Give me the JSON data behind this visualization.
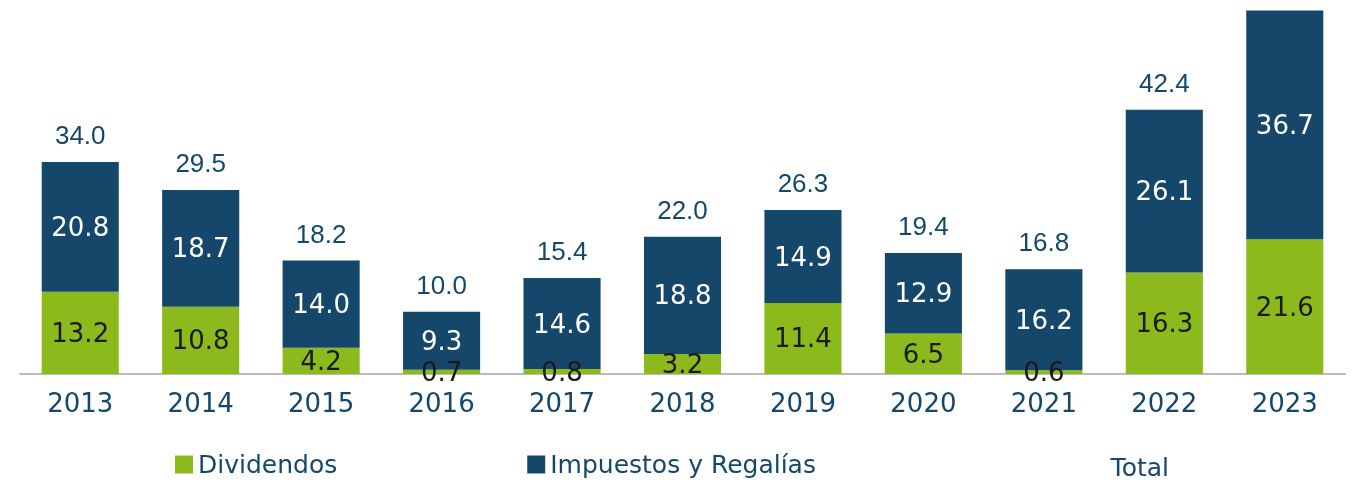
{
  "chart_data": {
    "type": "bar",
    "stacked": true,
    "categories": [
      "2013",
      "2014",
      "2015",
      "2016",
      "2017",
      "2018",
      "2019",
      "2020",
      "2021",
      "2022",
      "2023"
    ],
    "series": [
      {
        "name": "Dividendos",
        "color": "#8cba1c",
        "values": [
          13.2,
          10.8,
          4.2,
          0.7,
          0.8,
          3.2,
          11.4,
          6.5,
          0.6,
          16.3,
          21.6
        ],
        "value_labels": [
          "13.2",
          "10.8",
          "4.2",
          "0.7",
          "0.8",
          "3.2",
          "11.4",
          "6.5",
          "0.6",
          "16.3",
          "21.6"
        ]
      },
      {
        "name": "Impuestos y Regalías",
        "color": "#15476b",
        "values": [
          20.8,
          18.7,
          14.0,
          9.3,
          14.6,
          18.8,
          14.9,
          12.9,
          16.2,
          26.1,
          36.7
        ],
        "value_labels": [
          "20.8",
          "18.7",
          "14.0",
          "9.3",
          "14.6",
          "18.8",
          "14.9",
          "12.9",
          "16.2",
          "26.1",
          "36.7"
        ]
      }
    ],
    "totals": [
      "34.0",
      "29.5",
      "18.2",
      "10.0",
      "15.4",
      "22.0",
      "26.3",
      "19.4",
      "16.8",
      "42.4",
      null
    ],
    "annotations": [
      "Total"
    ],
    "legend": "bottom",
    "tick_labels": "x"
  }
}
